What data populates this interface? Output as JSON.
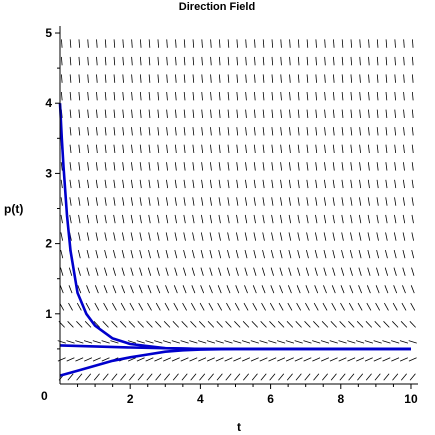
{
  "chart_data": {
    "type": "line",
    "title": "Direction Field",
    "xlabel": "t",
    "ylabel": "p(t)",
    "xlim": [
      0,
      10.2
    ],
    "ylim": [
      0,
      5.1
    ],
    "x_ticks": [
      2,
      4,
      6,
      8,
      10
    ],
    "y_ticks": [
      1,
      2,
      3,
      4,
      5
    ],
    "x_tick_labels": [
      "2",
      "4",
      "6",
      "8",
      "10"
    ],
    "y_tick_labels": [
      "1",
      "2",
      "3",
      "4",
      "5"
    ],
    "origin_label": "0",
    "direction_field": {
      "grid_t": [
        0.05,
        0.3,
        0.55,
        0.8,
        1.05,
        1.3,
        1.55,
        1.8,
        2.05,
        2.3,
        2.55,
        2.8,
        3.05,
        3.3,
        3.55,
        3.8,
        4.05,
        4.3,
        4.55,
        4.8,
        5.05,
        5.3,
        5.55,
        5.8,
        6.05,
        6.3,
        6.55,
        6.8,
        7.05,
        7.3,
        7.55,
        7.8,
        8.05,
        8.3,
        8.55,
        8.8,
        9.05,
        9.3,
        9.55,
        9.8,
        10.05
      ],
      "grid_p": [
        0.1,
        0.35,
        0.6,
        0.85,
        1.1,
        1.35,
        1.6,
        1.85,
        2.1,
        2.35,
        2.6,
        2.85,
        3.1,
        3.35,
        3.6,
        3.85,
        4.1,
        4.35,
        4.6,
        4.85
      ],
      "equilibrium": 0.5,
      "rate": 1.5
    },
    "solution_curves": [
      {
        "p0": 4.0,
        "t": [
          0,
          0.05,
          0.1,
          0.2,
          0.3,
          0.5,
          0.75,
          1,
          1.5,
          2,
          3,
          4,
          6,
          8,
          10
        ],
        "p": [
          4.0,
          3.5,
          3.1,
          2.4,
          1.9,
          1.3,
          1.0,
          0.83,
          0.65,
          0.57,
          0.51,
          0.5,
          0.5,
          0.5,
          0.5
        ]
      },
      {
        "p0": 0.55,
        "t": [
          0,
          2,
          4,
          6,
          8,
          10
        ],
        "p": [
          0.55,
          0.52,
          0.5,
          0.5,
          0.5,
          0.5
        ]
      },
      {
        "p0": 0.12,
        "t": [
          0,
          0.5,
          1,
          1.5,
          2,
          2.5,
          3,
          3.5,
          4,
          5,
          6,
          8,
          10
        ],
        "p": [
          0.12,
          0.19,
          0.26,
          0.33,
          0.38,
          0.42,
          0.46,
          0.48,
          0.49,
          0.5,
          0.5,
          0.5,
          0.5
        ]
      }
    ],
    "grid": false,
    "legend": "none",
    "colors": {
      "curve": "#0000cc",
      "field": "#000000",
      "axes": "#000000"
    }
  }
}
